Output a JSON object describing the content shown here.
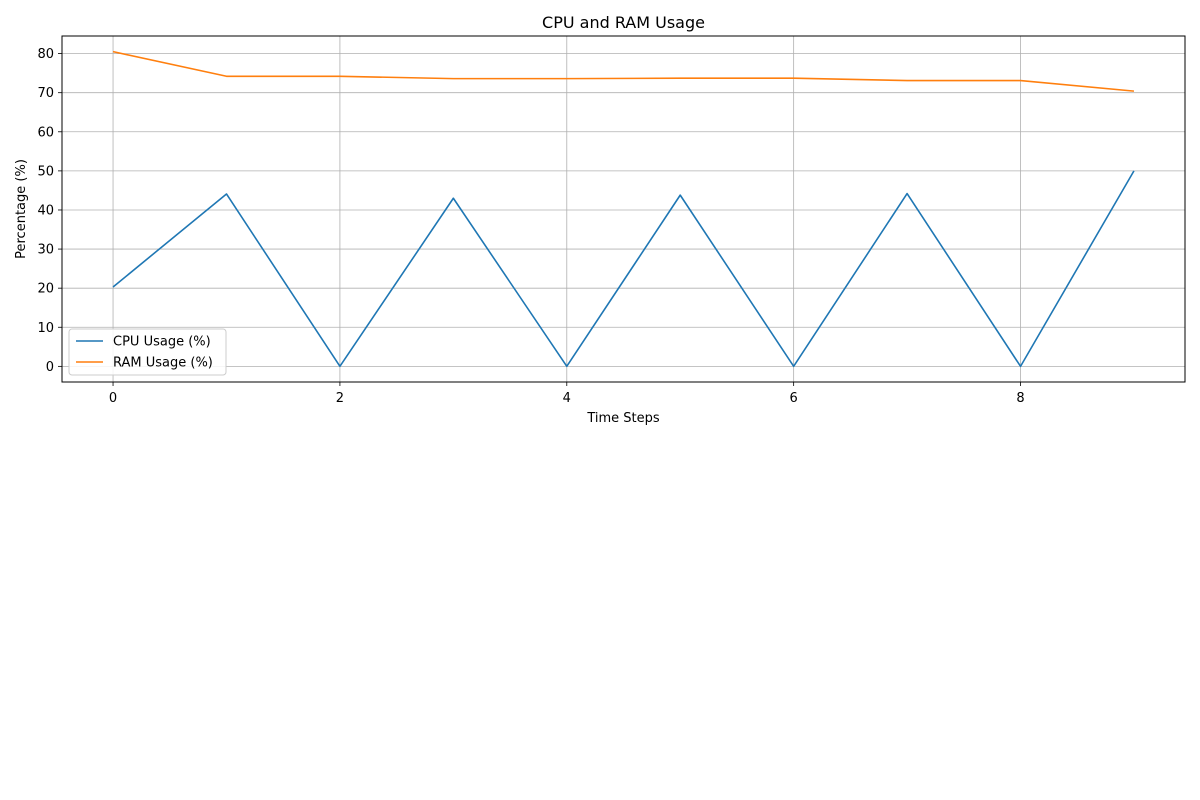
{
  "chart_data": {
    "type": "line",
    "title": "CPU and RAM Usage",
    "xlabel": "Time Steps",
    "ylabel": "Percentage (%)",
    "x": [
      0,
      1,
      2,
      3,
      4,
      5,
      6,
      7,
      8,
      9
    ],
    "xlim": [
      -0.45,
      9.45
    ],
    "ylim": [
      -4,
      84.5
    ],
    "xticks": [
      0,
      2,
      4,
      6,
      8
    ],
    "yticks": [
      0,
      10,
      20,
      30,
      40,
      50,
      60,
      70,
      80
    ],
    "grid": true,
    "legend_position": "lower-left",
    "series": [
      {
        "name": "CPU Usage (%)",
        "color": "#1f77b4",
        "values": [
          20.3,
          44.1,
          0.0,
          43.0,
          0.0,
          43.8,
          0.0,
          44.2,
          0.0,
          50.0
        ]
      },
      {
        "name": "RAM Usage (%)",
        "color": "#ff7f0e",
        "values": [
          80.5,
          74.2,
          74.2,
          73.6,
          73.6,
          73.7,
          73.7,
          73.1,
          73.1,
          70.4
        ]
      }
    ]
  }
}
